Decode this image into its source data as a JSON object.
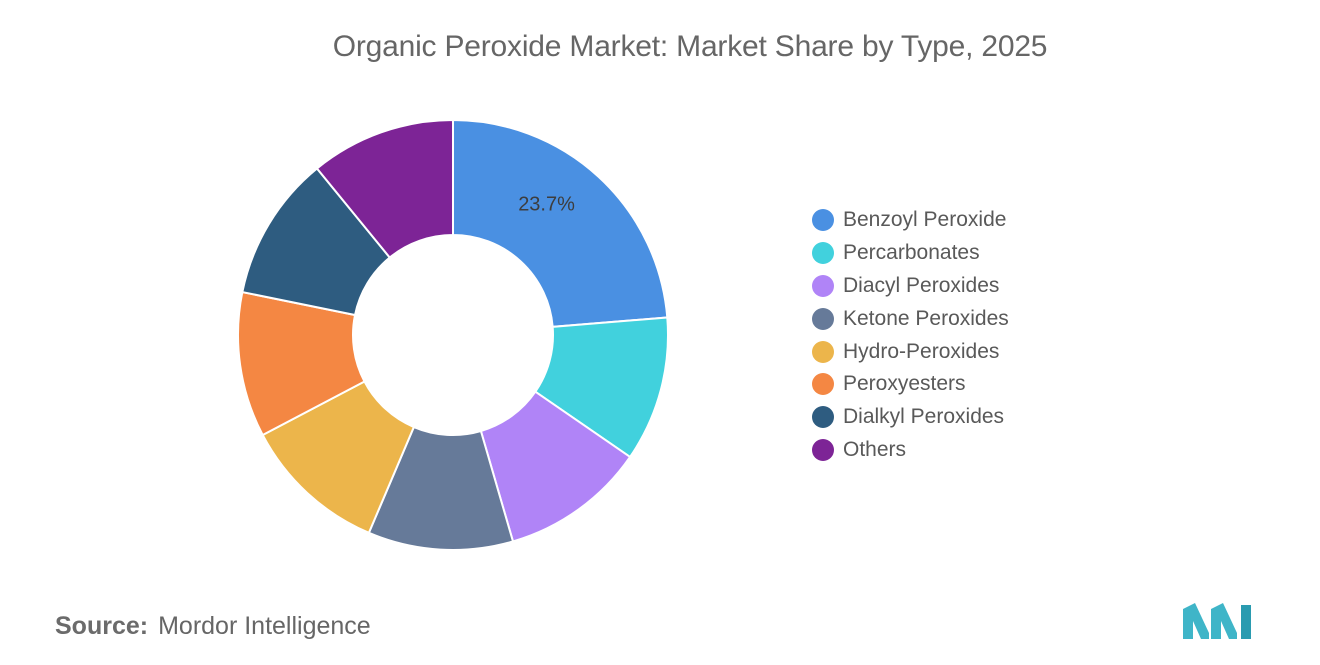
{
  "chart_data": {
    "type": "pie",
    "title": "Organic Peroxide Market: Market Share by Type, 2025",
    "donut": true,
    "legend_position": "right",
    "slices": [
      {
        "name": "Benzoyl Peroxide",
        "value": 23.7,
        "color": "#4a90e2",
        "label": "23.7%"
      },
      {
        "name": "Percarbonates",
        "value": 10.9,
        "color": "#41d1dd",
        "label": ""
      },
      {
        "name": "Diacyl Peroxides",
        "value": 10.9,
        "color": "#b084f7",
        "label": ""
      },
      {
        "name": "Ketone Peroxides",
        "value": 10.9,
        "color": "#667a99",
        "label": ""
      },
      {
        "name": "Hydro-Peroxides",
        "value": 10.9,
        "color": "#ecb54b",
        "label": ""
      },
      {
        "name": "Peroxyesters",
        "value": 10.9,
        "color": "#f48743",
        "label": ""
      },
      {
        "name": "Dialkyl Peroxides",
        "value": 10.9,
        "color": "#2e5c80",
        "label": ""
      },
      {
        "name": "Others",
        "value": 10.9,
        "color": "#7d2496",
        "label": ""
      }
    ]
  },
  "source": {
    "label": "Source:",
    "value": "Mordor Intelligence"
  },
  "logo": {
    "icon": "mordor-intelligence-logo",
    "color": "#3fb5c8"
  }
}
